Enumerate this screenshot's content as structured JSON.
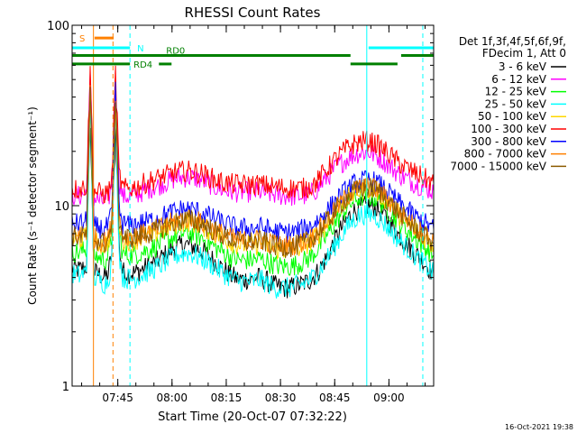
{
  "chart_data": {
    "type": "line",
    "title": "RHESSI Count Rates",
    "xlabel": "Start Time (20-Oct-07 07:32:22)",
    "ylabel": "Count Rate (s⁻¹ detector segment⁻¹)",
    "yscale": "log",
    "ylim": [
      1,
      100
    ],
    "xlim_minutes_after_start": [
      0,
      100
    ],
    "x_ticks": [
      {
        "label": "07:45",
        "minute": 12.63
      },
      {
        "label": "08:00",
        "minute": 27.63
      },
      {
        "label": "08:15",
        "minute": 42.63
      },
      {
        "label": "08:30",
        "minute": 57.63
      },
      {
        "label": "08:45",
        "minute": 72.63
      },
      {
        "label": "09:00",
        "minute": 87.63
      }
    ],
    "y_ticks": [
      {
        "label": "1",
        "value": 1
      },
      {
        "label": "10",
        "value": 10
      },
      {
        "label": "100",
        "value": 100
      }
    ],
    "legend_header": [
      "Det 1f,3f,4f,5f,6f,9f,",
      "FDecim 1, Att 0"
    ],
    "legend_position": "right",
    "x": [
      0,
      2,
      4,
      5,
      6,
      7,
      8,
      9,
      10,
      11,
      12,
      13,
      14,
      16,
      18,
      20,
      22,
      24,
      26,
      28,
      30,
      32,
      34,
      36,
      38,
      40,
      42,
      44,
      46,
      48,
      50,
      52,
      54,
      56,
      58,
      60,
      62,
      64,
      66,
      68,
      70,
      72,
      74,
      76,
      78,
      80,
      82,
      84,
      86,
      88,
      90,
      92,
      94,
      96,
      98,
      100
    ],
    "series": [
      {
        "name": "3 - 6 keV",
        "color": "#000000",
        "values": [
          4.5,
          4.4,
          4.6,
          30,
          4.3,
          4.2,
          4.1,
          4.0,
          4.2,
          5.5,
          30,
          6.0,
          4.3,
          4.2,
          4.3,
          4.5,
          4.7,
          5.0,
          5.4,
          5.8,
          6.0,
          6.1,
          5.9,
          5.6,
          5.2,
          4.8,
          4.4,
          4.1,
          3.9,
          3.9,
          3.9,
          4.0,
          3.8,
          3.6,
          3.5,
          3.5,
          3.6,
          3.7,
          3.9,
          4.3,
          5.0,
          6.0,
          7.2,
          8.4,
          9.3,
          9.8,
          10.0,
          9.8,
          9.0,
          8.0,
          7.0,
          6.3,
          5.7,
          5.2,
          4.7,
          4.2
        ]
      },
      {
        "name": "6 - 12 keV",
        "color": "#ff00ff",
        "values": [
          11.5,
          11.3,
          11.8,
          50,
          11.0,
          10.8,
          10.6,
          10.5,
          10.8,
          13.0,
          50,
          14.0,
          11.2,
          11.3,
          11.6,
          12.1,
          12.6,
          13.0,
          13.5,
          14.0,
          14.3,
          14.4,
          14.2,
          13.8,
          13.2,
          12.6,
          12.2,
          12.0,
          11.9,
          11.9,
          11.9,
          11.9,
          11.7,
          11.5,
          11.4,
          11.3,
          11.3,
          11.3,
          11.6,
          12.5,
          14.0,
          15.5,
          17.0,
          18.2,
          19.2,
          19.8,
          19.8,
          19.0,
          17.8,
          16.5,
          15.2,
          14.3,
          13.6,
          13.0,
          12.5,
          12.0
        ]
      },
      {
        "name": "12 - 25 keV",
        "color": "#00ff00",
        "values": [
          5.6,
          5.5,
          5.7,
          40,
          5.3,
          5.2,
          5.1,
          5.0,
          5.3,
          6.8,
          40,
          7.2,
          5.4,
          5.3,
          5.4,
          5.6,
          5.8,
          6.1,
          6.4,
          6.7,
          7.0,
          7.1,
          6.9,
          6.6,
          6.2,
          5.8,
          5.5,
          5.2,
          5.0,
          5.0,
          5.0,
          5.1,
          4.9,
          4.7,
          4.6,
          4.6,
          4.7,
          4.9,
          5.2,
          5.8,
          6.6,
          7.6,
          8.7,
          9.8,
          10.7,
          11.2,
          11.3,
          11.0,
          10.2,
          9.2,
          8.3,
          7.5,
          6.9,
          6.3,
          5.8,
          5.3
        ]
      },
      {
        "name": "25 - 50 keV",
        "color": "#00ffff",
        "values": [
          4.2,
          4.1,
          4.3,
          35,
          4.0,
          3.9,
          3.8,
          3.7,
          3.9,
          5.0,
          35,
          5.5,
          4.0,
          3.9,
          4.0,
          4.2,
          4.4,
          4.6,
          4.9,
          5.2,
          5.4,
          5.5,
          5.3,
          5.1,
          4.8,
          4.5,
          4.2,
          4.0,
          3.8,
          3.8,
          3.8,
          3.9,
          3.7,
          3.5,
          3.5,
          3.5,
          3.6,
          3.7,
          3.9,
          4.3,
          4.9,
          5.7,
          6.6,
          7.6,
          8.4,
          8.9,
          9.0,
          8.8,
          8.1,
          7.3,
          6.6,
          6.0,
          5.5,
          5.0,
          4.6,
          4.2
        ]
      },
      {
        "name": "50 - 100 keV",
        "color": "#ffd700",
        "values": [
          6.6,
          6.5,
          6.7,
          42,
          6.3,
          6.2,
          6.1,
          6.0,
          6.3,
          7.8,
          42,
          8.2,
          6.5,
          6.4,
          6.5,
          6.7,
          6.9,
          7.2,
          7.5,
          7.8,
          8.1,
          8.2,
          8.0,
          7.7,
          7.3,
          6.9,
          6.6,
          6.3,
          6.1,
          6.1,
          6.1,
          6.2,
          6.0,
          5.8,
          5.7,
          5.7,
          5.8,
          6.0,
          6.3,
          6.9,
          7.7,
          8.7,
          9.8,
          10.9,
          11.8,
          12.3,
          12.4,
          12.1,
          11.2,
          10.1,
          9.1,
          8.3,
          7.6,
          7.0,
          6.5,
          6.0
        ]
      },
      {
        "name": "100 - 300 keV",
        "color": "#ff0000",
        "values": [
          12.5,
          12.3,
          12.9,
          55,
          12.1,
          11.9,
          11.7,
          11.6,
          11.9,
          14.0,
          55,
          15.0,
          12.4,
          12.5,
          12.8,
          13.3,
          13.8,
          14.2,
          14.7,
          15.2,
          15.5,
          15.6,
          15.4,
          15.0,
          14.4,
          13.8,
          13.4,
          13.2,
          13.1,
          13.1,
          13.1,
          13.1,
          12.9,
          12.7,
          12.6,
          12.5,
          12.5,
          12.5,
          12.8,
          13.8,
          15.5,
          17.3,
          19.2,
          20.8,
          22.0,
          22.8,
          22.8,
          22.0,
          20.6,
          19.0,
          17.5,
          16.4,
          15.5,
          14.7,
          14.0,
          13.3
        ]
      },
      {
        "name": "300 - 800 keV",
        "color": "#0000ff",
        "values": [
          8.0,
          7.9,
          8.2,
          45,
          7.7,
          7.6,
          7.5,
          7.4,
          7.7,
          9.2,
          45,
          9.6,
          7.9,
          7.8,
          7.9,
          8.1,
          8.3,
          8.6,
          8.9,
          9.2,
          9.5,
          9.6,
          9.4,
          9.1,
          8.7,
          8.3,
          8.0,
          7.7,
          7.5,
          7.5,
          7.5,
          7.6,
          7.4,
          7.2,
          7.1,
          7.1,
          7.2,
          7.4,
          7.7,
          8.3,
          9.1,
          10.1,
          11.2,
          12.3,
          13.2,
          13.7,
          13.8,
          13.5,
          12.6,
          11.5,
          10.5,
          9.7,
          9.0,
          8.4,
          7.9,
          7.4
        ]
      },
      {
        "name": "800 - 7000 keV",
        "color": "#ff8000",
        "values": [
          6.9,
          6.8,
          7.0,
          43,
          6.6,
          6.5,
          6.4,
          6.3,
          6.6,
          8.1,
          43,
          8.5,
          6.8,
          6.7,
          6.8,
          7.0,
          7.2,
          7.5,
          7.8,
          8.1,
          8.4,
          8.5,
          8.3,
          8.0,
          7.6,
          7.2,
          6.9,
          6.6,
          6.4,
          6.4,
          6.4,
          6.5,
          6.3,
          6.1,
          6.0,
          6.0,
          6.1,
          6.3,
          6.6,
          7.2,
          8.0,
          9.0,
          10.1,
          11.2,
          12.1,
          12.6,
          12.7,
          12.4,
          11.5,
          10.4,
          9.4,
          8.6,
          7.9,
          7.3,
          6.8,
          6.3
        ]
      },
      {
        "name": "7000 - 15000 keV",
        "color": "#8b5a00",
        "values": [
          6.8,
          6.7,
          6.9,
          42,
          6.5,
          6.4,
          6.3,
          6.2,
          6.5,
          8.0,
          42,
          8.4,
          6.7,
          6.6,
          6.7,
          6.9,
          7.1,
          7.4,
          7.7,
          8.0,
          8.3,
          8.4,
          8.2,
          7.9,
          7.5,
          7.1,
          6.8,
          6.5,
          6.3,
          6.3,
          6.3,
          6.4,
          6.2,
          6.0,
          5.9,
          5.9,
          6.0,
          6.2,
          6.5,
          7.1,
          7.9,
          8.9,
          10.0,
          11.1,
          12.0,
          12.5,
          12.6,
          12.3,
          11.4,
          10.3,
          9.3,
          8.5,
          7.8,
          7.2,
          6.7,
          6.2
        ]
      }
    ],
    "vertical_markers": [
      {
        "minute": 0.0,
        "color": "#00ffff",
        "style": "solid"
      },
      {
        "minute": 5.9,
        "color": "#ff8000",
        "style": "solid"
      },
      {
        "minute": 11.3,
        "color": "#ff8000",
        "style": "dashed"
      },
      {
        "minute": 16.0,
        "color": "#00ffff",
        "style": "dashed"
      },
      {
        "minute": 81.5,
        "color": "#00ffff",
        "style": "solid"
      },
      {
        "minute": 97.0,
        "color": "#00ffff",
        "style": "dashed"
      }
    ],
    "flag_bars": [
      {
        "label": "S",
        "color": "#ff8000",
        "value": 85,
        "segments": [
          [
            6.2,
            11.5
          ]
        ],
        "label_at": 2.0
      },
      {
        "label": "N",
        "color": "#00ffff",
        "value": 75,
        "segments": [
          [
            0,
            16.0
          ],
          [
            82.0,
            100
          ]
        ],
        "label_at": 18.0
      },
      {
        "label": "RD0",
        "color": "#008000",
        "value": 68,
        "segments": [
          [
            0,
            77.0
          ],
          [
            91.0,
            100
          ]
        ],
        "label_at": 26.0
      },
      {
        "label": "RD4",
        "color": "#008000",
        "value": 61,
        "segments": [
          [
            0,
            16.0
          ],
          [
            24.0,
            27.5
          ],
          [
            77.0,
            90.0
          ]
        ],
        "label_at": 17.0
      }
    ],
    "footer_timestamp": "16-Oct-2021 19:38"
  }
}
